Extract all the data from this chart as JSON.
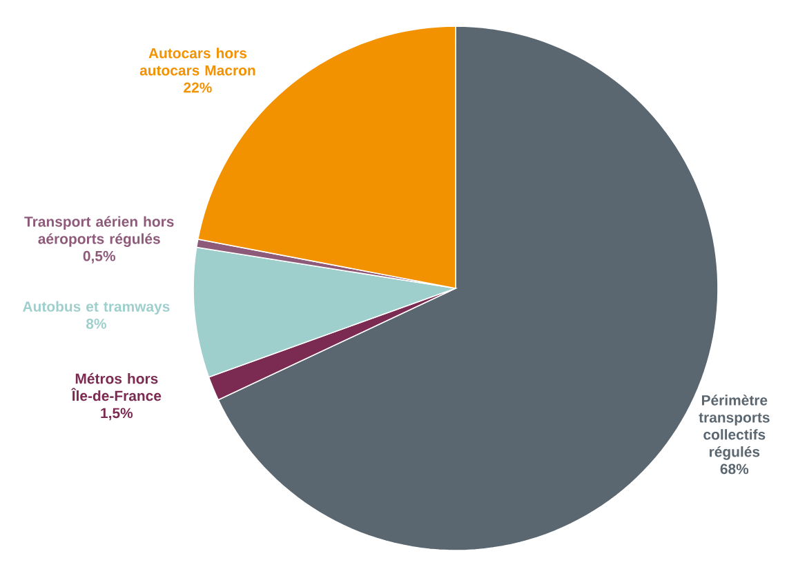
{
  "chart_data": {
    "type": "pie",
    "categories": [
      "Périmètre transports collectifs régulés",
      "Métros hors Île-de-France",
      "Autobus et tramways",
      "Transport aérien hors aéroports régulés",
      "Autocars hors autocars Macron"
    ],
    "values": [
      68,
      1.5,
      8,
      0.5,
      22
    ],
    "value_labels": [
      "68%",
      "1,5%",
      "8%",
      "0,5%",
      "22%"
    ],
    "colors": [
      "#5a6670",
      "#7b2a52",
      "#9ecfcc",
      "#8e5a7a",
      "#f39200"
    ]
  }
}
